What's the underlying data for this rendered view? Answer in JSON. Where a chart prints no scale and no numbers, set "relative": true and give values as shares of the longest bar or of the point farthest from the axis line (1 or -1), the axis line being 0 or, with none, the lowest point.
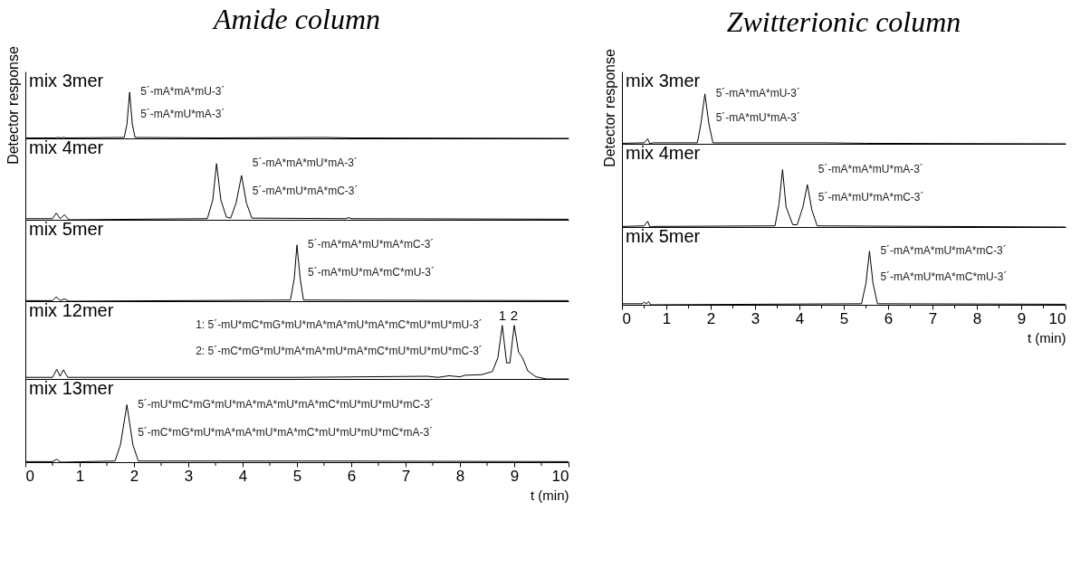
{
  "chart_data": [
    {
      "type": "line",
      "title": "Amide column",
      "subtitle": "mix 3mer",
      "ylabel": "Detector response",
      "relative": true,
      "tick_labels": false,
      "xlim": [
        0,
        10
      ],
      "x": [
        0,
        0.55,
        0.6,
        0.65,
        0.7,
        0.75,
        1.82,
        1.87,
        1.92,
        1.97,
        2.02,
        3.5,
        5.5,
        6.0,
        10
      ],
      "series": [
        {
          "color": "#000000",
          "values": [
            0.01,
            0.01,
            0.02,
            0.01,
            0.02,
            0.01,
            0.02,
            0.3,
            1,
            0.3,
            0.02,
            0.01,
            0.02,
            0.01,
            0
          ]
        }
      ],
      "annotations": [
        "5´-mA*mA*mU-3´",
        "5´-mA*mU*mA-3´"
      ]
    },
    {
      "type": "line",
      "title": "Zwitterionic column",
      "subtitle": "mix 3mer",
      "ylabel": "Detector response",
      "relative": true,
      "tick_labels": false,
      "xlim": [
        0,
        10
      ],
      "x": [
        0,
        0.5,
        0.58,
        0.63,
        0.7,
        1.7,
        1.78,
        1.87,
        1.96,
        2.05,
        4.5,
        5.5,
        10
      ],
      "series": [
        {
          "color": "#000000",
          "values": [
            0.01,
            0.02,
            0.1,
            0,
            0.02,
            0.02,
            0.4,
            1,
            0.4,
            0.02,
            0.02,
            0.01,
            0
          ]
        }
      ],
      "annotations": [
        "5´-mA*mA*mU-3´",
        "5´-mA*mU*mA-3´"
      ]
    },
    {
      "type": "line",
      "subtitle": "mix 4mer",
      "relative": true,
      "tick_labels": false,
      "xlim": [
        0,
        10
      ],
      "x": [
        0,
        0.5,
        0.57,
        0.64,
        0.72,
        0.8,
        3.35,
        3.45,
        3.52,
        3.6,
        3.7,
        3.78,
        3.88,
        3.98,
        4.07,
        4.17,
        5.9,
        5.95,
        6.0,
        10
      ],
      "series": [
        {
          "color": "#000000",
          "values": [
            0.02,
            0.02,
            0.12,
            0.02,
            0.09,
            0,
            0.02,
            0.35,
            1,
            0.35,
            0.05,
            0.03,
            0.3,
            0.79,
            0.3,
            0.03,
            0.02,
            0.04,
            0.02,
            0.01
          ]
        }
      ],
      "annotations": [
        "5´-mA*mA*mU*mA-3´",
        "5´-mA*mU*mA*mC-3´"
      ]
    },
    {
      "type": "line",
      "subtitle": "mix 4mer",
      "relative": true,
      "tick_labels": false,
      "xlim": [
        0,
        10
      ],
      "x": [
        0,
        0.5,
        0.58,
        0.63,
        0.7,
        3.45,
        3.54,
        3.62,
        3.7,
        3.85,
        3.95,
        4.08,
        4.18,
        4.28,
        4.4,
        10
      ],
      "series": [
        {
          "color": "#000000",
          "values": [
            0.01,
            0.02,
            0.1,
            0,
            0.01,
            0.02,
            0.4,
            1,
            0.35,
            0.04,
            0.04,
            0.35,
            0.74,
            0.3,
            0.02,
            0
          ]
        }
      ],
      "annotations": [
        "5´-mA*mA*mU*mA-3´",
        "5´-mA*mU*mA*mC-3´"
      ]
    },
    {
      "type": "line",
      "subtitle": "mix 5mer",
      "relative": true,
      "tick_labels": false,
      "xlim": [
        0,
        10
      ],
      "x": [
        0,
        0.5,
        0.57,
        0.64,
        0.72,
        0.8,
        4.88,
        4.95,
        5.0,
        5.06,
        5.12,
        10
      ],
      "series": [
        {
          "color": "#000000",
          "values": [
            0.01,
            0.01,
            0.08,
            0.01,
            0.04,
            0,
            0.02,
            0.4,
            1,
            0.4,
            0.02,
            0.01
          ]
        }
      ],
      "annotations": [
        "5´-mA*mA*mU*mA*mC-3´",
        "5´-mA*mU*mA*mC*mU-3´"
      ]
    },
    {
      "type": "line",
      "subtitle": "mix 5mer",
      "xlabel": "t (min)",
      "relative": true,
      "tick_labels": "x",
      "xlim": [
        0,
        10
      ],
      "xticks": [
        0,
        {
          "value": 0.5,
          "label": null
        },
        1,
        {
          "value": 1.5,
          "label": null
        },
        2,
        {
          "value": 2.5,
          "label": null
        },
        3,
        {
          "value": 3.5,
          "label": null
        },
        4,
        {
          "value": 4.5,
          "label": null
        },
        5,
        {
          "value": 5.5,
          "label": null
        },
        6,
        {
          "value": 6.5,
          "label": null
        },
        7,
        {
          "value": 7.5,
          "label": null
        },
        8,
        {
          "value": 8.5,
          "label": null
        },
        9,
        {
          "value": 9.5,
          "label": null
        },
        10
      ],
      "x": [
        0,
        0.45,
        0.5,
        0.55,
        0.6,
        0.65,
        5.4,
        5.5,
        5.58,
        5.66,
        5.76,
        10
      ],
      "series": [
        {
          "color": "#000000",
          "values": [
            0.02,
            0.02,
            0.05,
            0.02,
            0.06,
            0,
            0.02,
            0.4,
            1,
            0.4,
            0.02,
            0.01
          ]
        }
      ],
      "annotations": [
        "5´-mA*mA*mU*mA*mC-3´",
        "5´-mA*mU*mA*mC*mU-3´"
      ]
    },
    {
      "type": "line",
      "subtitle": "mix 12mer",
      "relative": true,
      "tick_labels": false,
      "xlim": [
        0,
        10
      ],
      "x": [
        0,
        0.5,
        0.58,
        0.64,
        0.7,
        0.78,
        2.0,
        5.0,
        7.4,
        7.6,
        7.8,
        8.0,
        8.1,
        8.4,
        8.6,
        8.7,
        8.78,
        8.86,
        8.92,
        9.0,
        9.08,
        9.15,
        9.25,
        9.4,
        9.6,
        10
      ],
      "series": [
        {
          "color": "#000000",
          "values": [
            0.03,
            0.03,
            0.18,
            0.05,
            0.17,
            0.03,
            0.03,
            0.03,
            0.05,
            0.03,
            0.06,
            0.04,
            0.07,
            0.08,
            0.14,
            0.4,
            1,
            0.3,
            0.3,
            1,
            0.5,
            0.4,
            0.15,
            0.04,
            0,
            0
          ]
        }
      ],
      "annotations": [
        "1: 5´-mU*mC*mG*mU*mA*mA*mU*mA*mC*mU*mU*mU-3´",
        "2: 5´-mC*mG*mU*mA*mA*mU*mA*mC*mU*mU*mU*mC-3´",
        {
          "text": "1",
          "x": 8.78,
          "y": 1
        },
        {
          "text": "2",
          "x": 9.0,
          "y": 1
        }
      ]
    },
    {
      "type": "line",
      "subtitle": "mix 13mer",
      "xlabel": "t (min)",
      "relative": true,
      "tick_labels": "x",
      "xlim": [
        0,
        10
      ],
      "xticks": [
        0,
        {
          "value": 0.5,
          "label": null
        },
        1,
        {
          "value": 1.5,
          "label": null
        },
        2,
        {
          "value": 2.5,
          "label": null
        },
        3,
        {
          "value": 3.5,
          "label": null
        },
        4,
        {
          "value": 4.5,
          "label": null
        },
        5,
        {
          "value": 5.5,
          "label": null
        },
        6,
        {
          "value": 6.5,
          "label": null
        },
        7,
        {
          "value": 7.5,
          "label": null
        },
        8,
        {
          "value": 8.5,
          "label": null
        },
        9,
        {
          "value": 9.5,
          "label": null
        },
        10
      ],
      "x": [
        0,
        0.5,
        0.58,
        0.65,
        1.65,
        1.75,
        1.87,
        1.98,
        2.08,
        5.5,
        10
      ],
      "series": [
        {
          "color": "#000000",
          "values": [
            0.01,
            0.01,
            0.05,
            0,
            0.02,
            0.3,
            1,
            0.3,
            0.02,
            0.02,
            0.01
          ]
        }
      ],
      "annotations": [
        "5´-mU*mC*mG*mU*mA*mA*mU*mA*mC*mU*mU*mU*mC-3´",
        "5´-mC*mG*mU*mA*mA*mU*mA*mC*mU*mU*mU*mC*mA-3´"
      ]
    }
  ]
}
